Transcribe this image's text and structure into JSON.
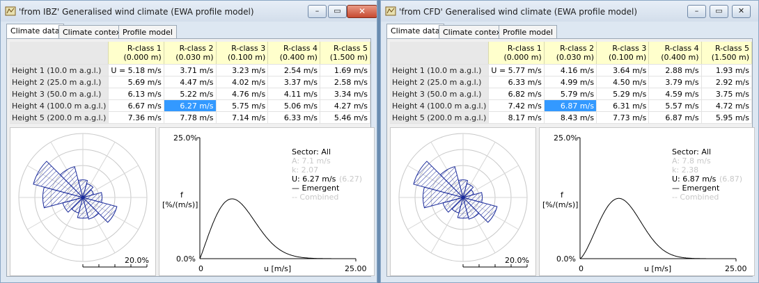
{
  "windows": [
    {
      "title": "'from IBZ' Generalised wind climate (EWA profile model)",
      "show_close": true,
      "min_label": "–",
      "max_label": "▭",
      "close_label": "✕",
      "tabs": [
        "Climate data",
        "Climate context",
        "Profile model"
      ],
      "columns": [
        {
          "name": "R-class 1",
          "sub": "(0.000 m)"
        },
        {
          "name": "R-class 2",
          "sub": "(0.030 m)"
        },
        {
          "name": "R-class 3",
          "sub": "(0.100 m)"
        },
        {
          "name": "R-class 4",
          "sub": "(0.400 m)"
        },
        {
          "name": "R-class 5",
          "sub": "(1.500 m)"
        }
      ],
      "rows": [
        {
          "label": "Height 1  (10.0 m a.g.l.)",
          "values": [
            "U = 5.18 m/s",
            "3.71 m/s",
            "3.23 m/s",
            "2.54 m/s",
            "1.69 m/s"
          ]
        },
        {
          "label": "Height 2  (25.0 m a.g.l.)",
          "values": [
            "5.69 m/s",
            "4.47 m/s",
            "4.02 m/s",
            "3.37 m/s",
            "2.58 m/s"
          ]
        },
        {
          "label": "Height 3  (50.0 m a.g.l.)",
          "values": [
            "6.13 m/s",
            "5.22 m/s",
            "4.76 m/s",
            "4.11 m/s",
            "3.34 m/s"
          ]
        },
        {
          "label": "Height 4  (100.0 m a.g.l.)",
          "values": [
            "6.67 m/s",
            "6.27 m/s",
            "5.75 m/s",
            "5.06 m/s",
            "4.27 m/s"
          ]
        },
        {
          "label": "Height 5  (200.0 m a.g.l.)",
          "values": [
            "7.36 m/s",
            "7.78 m/s",
            "7.14 m/s",
            "6.33 m/s",
            "5.46 m/s"
          ]
        }
      ],
      "selected_cell": {
        "row": 3,
        "col": 1
      },
      "rose": {
        "scale_label": "20.0%",
        "sectors": [
          5.5,
          4.5,
          3.5,
          6.0,
          11.0,
          7.0,
          6.5,
          5.0,
          6.5,
          12.5,
          16.0,
          10.0
        ]
      },
      "dist": {
        "ymax_label": "25.0%",
        "ymin_label": "0.0%",
        "xmin_label": "0",
        "xmax_label": "25.00",
        "xlabel": "u [m/s]",
        "ylabel_f": "f",
        "ylabel_unit": "[%/(m/s)]",
        "legend": {
          "sector": "Sector: All",
          "A": "A: 7.1 m/s",
          "k": "k: 2.07",
          "U_label": "U: 6.27 m/s",
          "U_faint": "(6.27)",
          "emergent": "— Emergent",
          "combined": "-- Combined"
        },
        "A": 7.1,
        "k": 2.07,
        "fmax": 25,
        "umax": 25
      }
    },
    {
      "title": "'from CFD' Generalised wind climate (EWA profile model)",
      "show_close": false,
      "min_label": "–",
      "max_label": "▭",
      "close_label": "✕",
      "tabs": [
        "Climate data",
        "Climate context",
        "Profile model"
      ],
      "columns": [
        {
          "name": "R-class 1",
          "sub": "(0.000 m)"
        },
        {
          "name": "R-class 2",
          "sub": "(0.030 m)"
        },
        {
          "name": "R-class 3",
          "sub": "(0.100 m)"
        },
        {
          "name": "R-class 4",
          "sub": "(0.400 m)"
        },
        {
          "name": "R-class 5",
          "sub": "(1.500 m)"
        }
      ],
      "rows": [
        {
          "label": "Height 1  (10.0 m a.g.l.)",
          "values": [
            "U = 5.77 m/s",
            "4.16 m/s",
            "3.64 m/s",
            "2.88 m/s",
            "1.93 m/s"
          ]
        },
        {
          "label": "Height 2  (25.0 m a.g.l.)",
          "values": [
            "6.33 m/s",
            "4.99 m/s",
            "4.50 m/s",
            "3.79 m/s",
            "2.92 m/s"
          ]
        },
        {
          "label": "Height 3  (50.0 m a.g.l.)",
          "values": [
            "6.82 m/s",
            "5.79 m/s",
            "5.29 m/s",
            "4.59 m/s",
            "3.75 m/s"
          ]
        },
        {
          "label": "Height 4  (100.0 m a.g.l.)",
          "values": [
            "7.42 m/s",
            "6.87 m/s",
            "6.31 m/s",
            "5.57 m/s",
            "4.72 m/s"
          ]
        },
        {
          "label": "Height 5  (200.0 m a.g.l.)",
          "values": [
            "8.17 m/s",
            "8.43 m/s",
            "7.73 m/s",
            "6.87 m/s",
            "5.95 m/s"
          ]
        }
      ],
      "selected_cell": {
        "row": 3,
        "col": 1
      },
      "rose": {
        "scale_label": "20.0%",
        "sectors": [
          5.5,
          4.5,
          3.5,
          6.0,
          11.0,
          7.0,
          6.5,
          5.0,
          6.5,
          12.5,
          16.0,
          10.0
        ]
      },
      "dist": {
        "ymax_label": "25.0%",
        "ymin_label": "0.0%",
        "xmin_label": "0",
        "xmax_label": "25.00",
        "xlabel": "u [m/s]",
        "ylabel_f": "f",
        "ylabel_unit": "[%/(m/s)]",
        "legend": {
          "sector": "Sector: All",
          "A": "A: 7.8 m/s",
          "k": "k: 2.38",
          "U_label": "U: 6.87 m/s",
          "U_faint": "(6.87)",
          "emergent": "— Emergent",
          "combined": "-- Combined"
        },
        "A": 7.8,
        "k": 2.38,
        "fmax": 25,
        "umax": 25
      }
    }
  ]
}
